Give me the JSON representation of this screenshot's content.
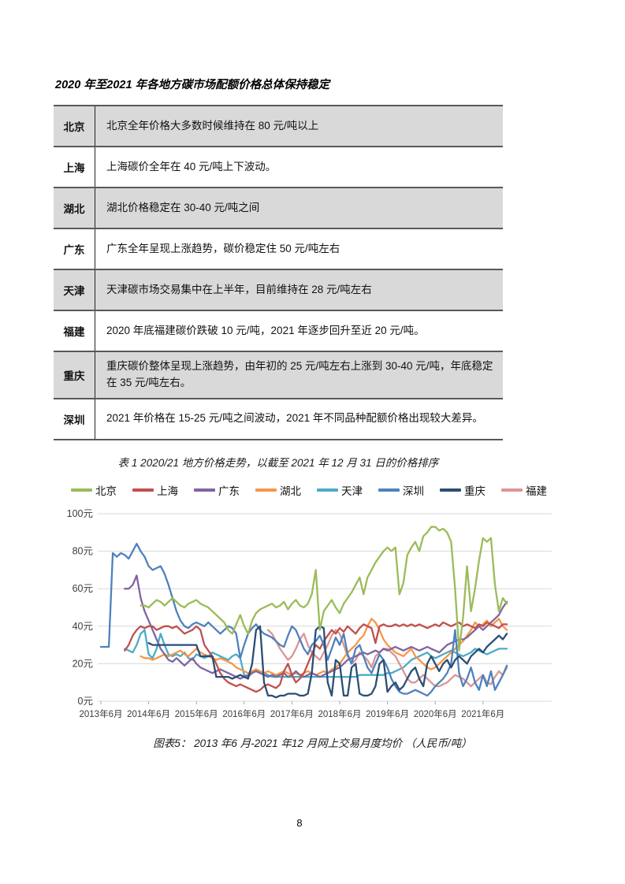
{
  "page": {
    "number": "8"
  },
  "heading": "2020 年至2021 年各地方碳市场配额价格总体保持稳定",
  "table": {
    "caption": "表 1 2020/21 地方价格走势，以截至 2021 年 12 月 31 日的价格排序",
    "rows": [
      {
        "region": "北京",
        "text": "北京全年价格大多数时候维持在 80 元/吨以上",
        "shaded": true
      },
      {
        "region": "上海",
        "text": "上海碳价全年在 40 元/吨上下波动。",
        "shaded": false
      },
      {
        "region": "湖北",
        "text": "湖北价格稳定在 30-40 元/吨之间",
        "shaded": true
      },
      {
        "region": "广东",
        "text": "广东全年呈现上涨趋势，碳价稳定住 50 元/吨左右",
        "shaded": false
      },
      {
        "region": "天津",
        "text": "天津碳市场交易集中在上半年，目前维持在 28 元/吨左右",
        "shaded": true
      },
      {
        "region": "福建",
        "text": "2020 年底福建碳价跌破 10 元/吨，2021 年逐步回升至近 20 元/吨。",
        "shaded": false
      },
      {
        "region": "重庆",
        "text": "重庆碳价整体呈现上涨趋势，由年初的 25 元/吨左右上涨到 30-40 元/吨，年底稳定在 35 元/吨左右。",
        "shaded": true
      },
      {
        "region": "深圳",
        "text": "2021 年价格在 15-25 元/吨之间波动，2021 年不同品种配额价格出现较大差异。",
        "shaded": false
      }
    ]
  },
  "chart_caption": "图表5： 2013 年6 月-2021 年12 月网上交易月度均价 （人民币/吨）",
  "chart_data": {
    "type": "line",
    "title": "网上交易月度均价（人民币/吨）",
    "x_unit": "month",
    "x_range": [
      "2013-06",
      "2021-12"
    ],
    "x_tick_labels": [
      "2013年6月",
      "2014年6月",
      "2015年6月",
      "2016年6月",
      "2017年6月",
      "2018年6月",
      "2019年6月",
      "2020年6月",
      "2021年6月"
    ],
    "x_tick_month_indices": [
      0,
      12,
      24,
      36,
      48,
      60,
      72,
      84,
      96
    ],
    "y_tick_labels": [
      "0元",
      "20元",
      "40元",
      "60元",
      "80元",
      "100元"
    ],
    "y_tick_values": [
      0,
      20,
      40,
      60,
      80,
      100
    ],
    "ylim": [
      0,
      100
    ],
    "grid": true,
    "legend_position": "top",
    "series": [
      {
        "name": "北京",
        "color": "#9BBB59",
        "start_month_index": 10,
        "values": [
          51,
          51,
          50,
          52,
          54,
          53,
          51,
          53,
          55,
          53,
          51,
          50,
          52,
          53,
          54,
          52,
          51,
          50,
          48,
          46,
          44,
          42,
          38,
          36,
          41,
          46,
          40,
          36,
          43,
          47,
          49,
          50,
          51,
          52,
          50,
          51,
          53,
          49,
          52,
          54,
          51,
          50,
          52,
          57,
          70,
          38,
          48,
          51,
          54,
          50,
          47,
          52,
          55,
          58,
          62,
          66,
          57,
          66,
          70,
          74,
          77,
          80,
          82,
          80,
          82,
          57,
          63,
          78,
          82,
          85,
          80,
          88,
          90,
          93,
          93,
          91,
          92,
          90,
          85,
          60,
          27,
          45,
          72,
          48,
          60,
          75,
          87,
          85,
          87,
          62,
          48,
          55,
          52
        ]
      },
      {
        "name": "上海",
        "color": "#C0504D",
        "start_month_index": 6,
        "values": [
          27,
          30,
          35,
          38,
          40,
          39,
          40,
          40,
          38,
          39,
          40,
          40,
          39,
          40,
          38,
          36,
          37,
          38,
          40,
          38,
          30,
          27,
          24,
          20,
          15,
          12,
          10,
          9,
          8,
          9,
          8,
          7,
          6,
          5,
          6,
          8,
          9,
          8,
          7,
          9,
          16,
          20,
          14,
          10,
          12,
          15,
          20,
          25,
          30,
          28,
          32,
          35,
          38,
          36,
          39,
          37,
          40,
          38,
          36,
          39,
          41,
          40,
          39,
          31,
          40,
          41,
          40,
          40,
          41,
          40,
          41,
          40,
          41,
          40,
          41,
          40,
          39,
          40,
          41,
          40,
          42,
          41,
          40,
          41,
          42,
          40,
          41,
          40,
          39,
          41,
          40,
          42,
          41,
          40,
          39,
          41,
          41
        ]
      },
      {
        "name": "广东",
        "color": "#8064A2",
        "start_month_index": 6,
        "values": [
          60,
          60,
          62,
          67,
          55,
          48,
          43,
          38,
          33,
          28,
          25,
          22,
          21,
          23,
          21,
          19,
          21,
          23,
          20,
          18,
          17,
          16,
          15,
          16,
          17,
          16,
          15,
          14,
          13,
          12,
          13,
          14,
          15,
          16,
          15,
          14,
          13,
          14,
          13,
          14,
          15,
          13,
          14,
          16,
          14,
          13,
          14,
          15,
          14,
          13,
          14,
          15,
          16,
          17,
          18,
          20,
          22,
          23,
          24,
          25,
          26,
          25,
          26,
          27,
          26,
          28,
          27,
          28,
          29,
          28,
          27,
          28,
          29,
          28,
          27,
          28,
          29,
          28,
          27,
          26,
          28,
          30,
          31,
          32,
          33,
          33,
          34,
          36,
          38,
          40,
          38,
          40,
          42,
          44,
          46,
          50,
          53
        ]
      },
      {
        "name": "湖北",
        "color": "#F79646",
        "start_month_index": 10,
        "values": [
          24,
          23,
          23,
          22,
          23,
          24,
          25,
          24,
          25,
          26,
          27,
          25,
          24,
          26,
          28,
          26,
          25,
          24,
          23,
          22,
          23,
          22,
          21,
          20,
          18,
          17,
          16,
          15,
          16,
          17,
          16,
          15,
          16,
          15,
          14,
          15,
          16,
          15,
          14,
          15,
          14,
          15,
          16,
          15,
          14,
          15,
          16,
          15,
          17,
          18,
          20,
          23,
          26,
          28,
          30,
          33,
          35,
          40,
          44,
          42,
          38,
          33,
          30,
          28,
          26,
          25,
          24,
          26,
          28,
          24,
          22,
          20,
          18,
          17,
          18,
          20,
          22,
          24,
          26,
          28,
          30,
          32,
          35,
          38,
          42,
          40,
          41,
          43,
          40,
          42,
          44,
          40,
          38
        ]
      },
      {
        "name": "天津",
        "color": "#4BACC6",
        "start_month_index": 6,
        "values": [
          28,
          27,
          26,
          30,
          36,
          38,
          25,
          23,
          28,
          36,
          30,
          25,
          24,
          25,
          24,
          26,
          23,
          22,
          25,
          24,
          23,
          24,
          26,
          25,
          24,
          23,
          22,
          24,
          25,
          23,
          14,
          13,
          15,
          17,
          16,
          15,
          14,
          13,
          13,
          13,
          13,
          13,
          13,
          13,
          13,
          13,
          13,
          13,
          13,
          13,
          13,
          13,
          13,
          13,
          13,
          13,
          13,
          13,
          13,
          14,
          14,
          14,
          14,
          14,
          14,
          14,
          15,
          15,
          16,
          17,
          18,
          20,
          22,
          23,
          24,
          25,
          26,
          24,
          23,
          24,
          25,
          26,
          27,
          26,
          25,
          24,
          25,
          26,
          28,
          27,
          26,
          25,
          26,
          27,
          28,
          28,
          28
        ]
      },
      {
        "name": "深圳",
        "color": "#4F81BD",
        "start_month_index": 0,
        "values": [
          29,
          29,
          29,
          79,
          77,
          79,
          78,
          76,
          80,
          84,
          80,
          77,
          72,
          70,
          71,
          72,
          68,
          62,
          55,
          48,
          43,
          40,
          39,
          41,
          42,
          41,
          40,
          42,
          40,
          38,
          36,
          38,
          40,
          39,
          36,
          23,
          30,
          36,
          39,
          41,
          38,
          36,
          35,
          34,
          32,
          30,
          29,
          35,
          40,
          38,
          33,
          28,
          25,
          30,
          32,
          35,
          30,
          22,
          28,
          34,
          30,
          36,
          25,
          20,
          28,
          30,
          24,
          18,
          15,
          20,
          25,
          22,
          18,
          12,
          8,
          5,
          4,
          4,
          5,
          6,
          5,
          4,
          3,
          5,
          8,
          10,
          12,
          15,
          20,
          38,
          15,
          8,
          12,
          18,
          10,
          6,
          14,
          8,
          16,
          6,
          10,
          14,
          19
        ]
      },
      {
        "name": "重庆",
        "color": "#2C4D75",
        "start_month_index": 12,
        "values": [
          31,
          30,
          30,
          30,
          30,
          30,
          30,
          30,
          30,
          30,
          30,
          30,
          30,
          24,
          24,
          24,
          24,
          13,
          13,
          13,
          13,
          12,
          13,
          14,
          13,
          12,
          20,
          38,
          40,
          10,
          3,
          3,
          2,
          3,
          3,
          4,
          4,
          4,
          3,
          3,
          4,
          15,
          38,
          40,
          39,
          10,
          3,
          22,
          20,
          3,
          3,
          18,
          20,
          4,
          3,
          3,
          4,
          8,
          20,
          22,
          5,
          8,
          10,
          6,
          8,
          12,
          16,
          18,
          12,
          8,
          20,
          24,
          20,
          16,
          20,
          22,
          18,
          22,
          24,
          22,
          20,
          24,
          26,
          28,
          26,
          29,
          31,
          33,
          35,
          33,
          36
        ]
      },
      {
        "name": "福建",
        "color": "#D99694",
        "start_month_index": 42,
        "values": [
          38,
          36,
          32,
          28,
          25,
          22,
          24,
          28,
          33,
          36,
          30,
          26,
          24,
          22,
          26,
          30,
          35,
          38,
          36,
          30,
          24,
          20,
          22,
          26,
          24,
          22,
          18,
          24,
          26,
          28,
          28,
          26,
          24,
          20,
          16,
          12,
          10,
          10,
          12,
          14,
          12,
          10,
          8,
          8,
          9,
          10,
          12,
          14,
          13,
          12,
          10,
          8,
          10,
          12,
          14,
          10,
          9,
          13,
          16,
          14,
          18
        ]
      }
    ]
  }
}
